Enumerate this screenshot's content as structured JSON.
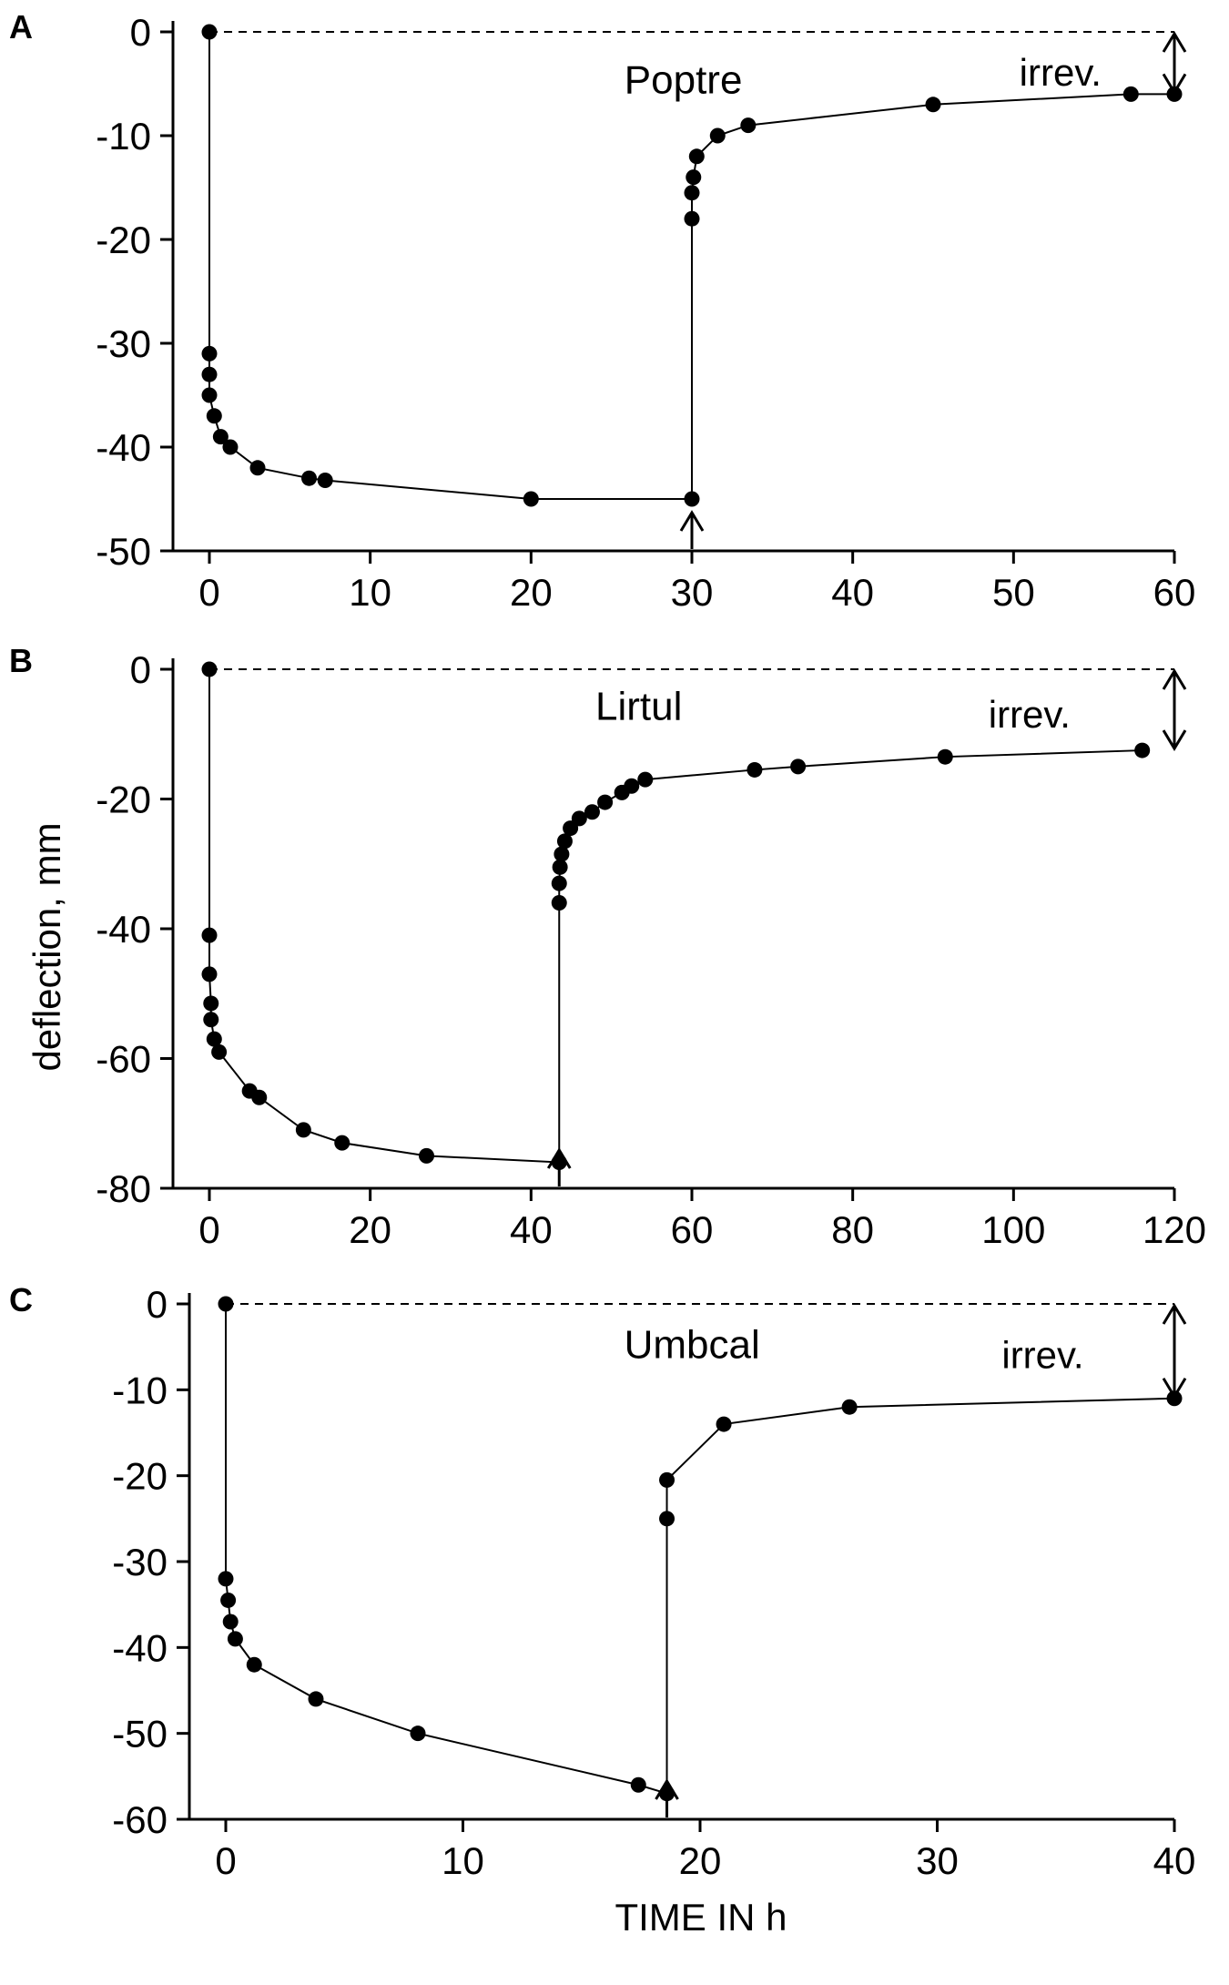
{
  "figure": {
    "xlabel": "TIME IN h",
    "ylabel": "deflection,  mm"
  },
  "chart_data": [
    {
      "type": "line",
      "panel": "A",
      "label": "Poptre",
      "annotation": "irrev.",
      "xlim": [
        0,
        60
      ],
      "ylim": [
        -50,
        0
      ],
      "xticks": [
        0,
        10,
        20,
        30,
        40,
        50,
        60
      ],
      "yticks": [
        0,
        -10,
        -20,
        -30,
        -40,
        -50
      ],
      "unload_time": 30,
      "points": [
        [
          0,
          0
        ],
        [
          0,
          -31
        ],
        [
          0,
          -33
        ],
        [
          0,
          -35
        ],
        [
          0.3,
          -37
        ],
        [
          0.7,
          -39
        ],
        [
          1.3,
          -40
        ],
        [
          3,
          -42
        ],
        [
          6.2,
          -43
        ],
        [
          7.2,
          -43.2
        ],
        [
          20,
          -45
        ],
        [
          30,
          -45
        ],
        [
          30,
          -18
        ],
        [
          30,
          -15.5
        ],
        [
          30.1,
          -14
        ],
        [
          30.3,
          -12
        ],
        [
          31.6,
          -10
        ],
        [
          33.5,
          -9
        ],
        [
          45,
          -7
        ],
        [
          57.3,
          -6
        ],
        [
          60,
          -6
        ]
      ],
      "irrev_value": -6
    },
    {
      "type": "line",
      "panel": "B",
      "label": "Lirtul",
      "annotation": "irrev.",
      "xlim": [
        0,
        120
      ],
      "ylim": [
        -80,
        0
      ],
      "xticks": [
        0,
        20,
        40,
        60,
        80,
        100,
        120
      ],
      "yticks": [
        0,
        -20,
        -40,
        -60,
        -80
      ],
      "unload_time": 43.5,
      "points": [
        [
          0,
          0
        ],
        [
          0,
          -41
        ],
        [
          0,
          -47
        ],
        [
          0.2,
          -51.5
        ],
        [
          0.2,
          -54
        ],
        [
          0.6,
          -57
        ],
        [
          1.2,
          -59
        ],
        [
          5,
          -65
        ],
        [
          6.2,
          -66
        ],
        [
          11.7,
          -71
        ],
        [
          16.5,
          -73
        ],
        [
          27,
          -75
        ],
        [
          43.5,
          -76
        ],
        [
          43.5,
          -36
        ],
        [
          43.5,
          -33
        ],
        [
          43.6,
          -30.5
        ],
        [
          43.8,
          -28.5
        ],
        [
          44.2,
          -26.5
        ],
        [
          44.9,
          -24.5
        ],
        [
          46,
          -23
        ],
        [
          47.6,
          -22
        ],
        [
          49.2,
          -20.5
        ],
        [
          51.3,
          -19
        ],
        [
          52.5,
          -18
        ],
        [
          54.2,
          -17
        ],
        [
          67.8,
          -15.5
        ],
        [
          73.2,
          -15
        ],
        [
          91.5,
          -13.5
        ],
        [
          116,
          -12.5
        ]
      ],
      "irrev_value": -12.5
    },
    {
      "type": "line",
      "panel": "C",
      "label": "Umbcal",
      "annotation": "irrev.",
      "xlim": [
        0,
        40
      ],
      "ylim": [
        -60,
        0
      ],
      "xticks": [
        0,
        10,
        20,
        30,
        40
      ],
      "yticks": [
        0,
        -10,
        -20,
        -30,
        -40,
        -50,
        -60
      ],
      "unload_time": 18.6,
      "points": [
        [
          0,
          0
        ],
        [
          0,
          -32
        ],
        [
          0.1,
          -34.5
        ],
        [
          0.2,
          -37
        ],
        [
          0.4,
          -39
        ],
        [
          1.2,
          -42
        ],
        [
          3.8,
          -46
        ],
        [
          8.1,
          -50
        ],
        [
          17.4,
          -56
        ],
        [
          18.6,
          -57
        ],
        [
          18.6,
          -25
        ],
        [
          18.6,
          -20.5
        ],
        [
          21,
          -14
        ],
        [
          26.3,
          -12
        ],
        [
          40,
          -11
        ]
      ],
      "irrev_value": -11
    }
  ]
}
